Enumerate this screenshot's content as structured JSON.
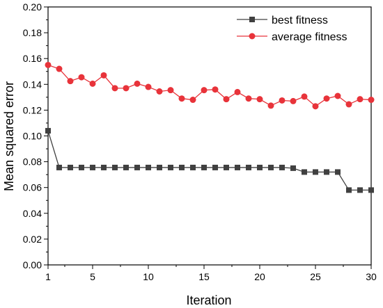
{
  "chart_data": {
    "type": "line",
    "title": "",
    "xlabel": "Iteration",
    "ylabel": "Mean squared error",
    "xlim": [
      1,
      30
    ],
    "ylim": [
      0,
      0.2
    ],
    "x_ticks": [
      1,
      5,
      10,
      15,
      20,
      25,
      30
    ],
    "x_tick_labels": [
      "1",
      "5",
      "10",
      "15",
      "20",
      "25",
      "30"
    ],
    "y_ticks": [
      0,
      0.02,
      0.04,
      0.06,
      0.08,
      0.1,
      0.12,
      0.14,
      0.16,
      0.18,
      0.2
    ],
    "y_tick_labels": [
      "0.00",
      "0.02",
      "0.04",
      "0.06",
      "0.08",
      "0.10",
      "0.12",
      "0.14",
      "0.16",
      "0.18",
      "0.20"
    ],
    "grid": false,
    "legend_position": "top-right",
    "x": [
      1,
      2,
      3,
      4,
      5,
      6,
      7,
      8,
      9,
      10,
      11,
      12,
      13,
      14,
      15,
      16,
      17,
      18,
      19,
      20,
      21,
      22,
      23,
      24,
      25,
      26,
      27,
      28,
      29,
      30
    ],
    "series": [
      {
        "name": "best fitness",
        "marker": "square",
        "color": "#404040",
        "values": [
          0.104,
          0.0755,
          0.0755,
          0.0755,
          0.0755,
          0.0755,
          0.0755,
          0.0755,
          0.0755,
          0.0755,
          0.0755,
          0.0755,
          0.0755,
          0.0755,
          0.0755,
          0.0755,
          0.0755,
          0.0755,
          0.0755,
          0.0755,
          0.0755,
          0.0755,
          0.075,
          0.072,
          0.072,
          0.072,
          0.072,
          0.058,
          0.058,
          0.058
        ]
      },
      {
        "name": "average fitness",
        "marker": "circle",
        "color": "#e8333a",
        "values": [
          0.155,
          0.152,
          0.1425,
          0.1455,
          0.1405,
          0.147,
          0.137,
          0.137,
          0.1405,
          0.138,
          0.1345,
          0.1355,
          0.129,
          0.128,
          0.1355,
          0.136,
          0.1285,
          0.134,
          0.129,
          0.1285,
          0.1235,
          0.1275,
          0.127,
          0.1305,
          0.123,
          0.129,
          0.131,
          0.1245,
          0.1285,
          0.128
        ]
      }
    ]
  }
}
